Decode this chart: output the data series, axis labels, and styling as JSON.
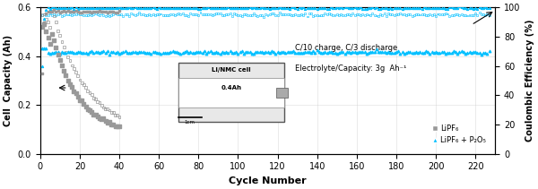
{
  "title": "",
  "xlabel": "Cycle Number",
  "ylabel_left": "Cell  Capacity (Ah)",
  "ylabel_right": "Coulombic Efficiency (%)",
  "xlim": [
    0,
    230
  ],
  "ylim_left": [
    0.0,
    0.6
  ],
  "ylim_right": [
    0,
    100
  ],
  "yticks_left": [
    0.0,
    0.2,
    0.4,
    0.6
  ],
  "yticks_right": [
    0,
    20,
    40,
    60,
    80,
    100
  ],
  "xticks": [
    0,
    20,
    40,
    60,
    80,
    100,
    120,
    140,
    160,
    180,
    200,
    220
  ],
  "annotation_text1": "C/10 charge, C/3 discharge",
  "annotation_text2": "Electrolyte/Capacity: 3g  Ah⁻¹",
  "legend_label1": "LiPF₆",
  "legend_label2": "LiPF₆ + P₂O₅",
  "inset_label1": "Li/NMC cell",
  "inset_label2": "0.4Ah",
  "gray_color": "#999999",
  "cyan_color": "#00bfff",
  "background_color": "#ffffff",
  "grid_color": "#cccccc"
}
